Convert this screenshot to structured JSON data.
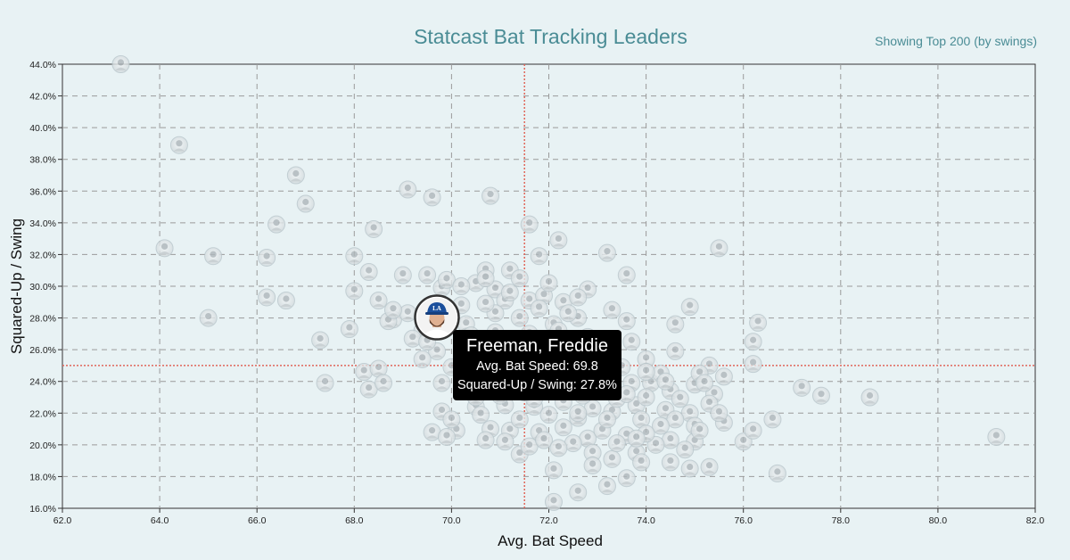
{
  "header": {
    "title": "Statcast Bat Tracking Leaders",
    "subtitle": "Showing Top 200 (by swings)"
  },
  "tooltip": {
    "name": "Freeman, Freddie",
    "bat_speed_text": "Avg. Bat Speed: 69.8",
    "squared_up_text": "Squared-Up / Swing: 27.8%"
  },
  "colors": {
    "background": "#e8f2f4",
    "accent": "#4a8c95",
    "reference_line": "#e0665a",
    "grid": "#9a9a9a",
    "marker_fill": "#dfe5e7",
    "highlight_ring": "#333333"
  },
  "chart_data": {
    "type": "scatter",
    "title": "Statcast Bat Tracking Leaders",
    "subtitle": "Showing Top 200 (by swings)",
    "xlabel": "Avg. Bat Speed",
    "ylabel": "Squared-Up / Swing",
    "xlim": [
      62,
      82
    ],
    "ylim": [
      16,
      44
    ],
    "x_ticks": [
      "62.0",
      "64.0",
      "66.0",
      "68.0",
      "70.0",
      "72.0",
      "74.0",
      "76.0",
      "78.0",
      "80.0",
      "82.0"
    ],
    "y_ticks": [
      "16.0%",
      "18.0%",
      "20.0%",
      "22.0%",
      "24.0%",
      "26.0%",
      "28.0%",
      "30.0%",
      "32.0%",
      "34.0%",
      "36.0%",
      "38.0%",
      "40.0%",
      "42.0%",
      "44.0%"
    ],
    "grid": true,
    "reference_lines": {
      "x": 71.5,
      "y": 25.0
    },
    "marker": "player headshot",
    "highlighted": {
      "name": "Freeman, Freddie",
      "x": 69.8,
      "y": 27.8
    },
    "points": [
      [
        63.2,
        44.0
      ],
      [
        64.4,
        38.9
      ],
      [
        66.8,
        37.0
      ],
      [
        67.0,
        35.2
      ],
      [
        69.1,
        36.1
      ],
      [
        69.6,
        35.6
      ],
      [
        70.8,
        35.7
      ],
      [
        66.4,
        33.9
      ],
      [
        64.1,
        32.4
      ],
      [
        65.1,
        31.9
      ],
      [
        66.2,
        31.8
      ],
      [
        68.0,
        31.9
      ],
      [
        68.4,
        33.6
      ],
      [
        71.6,
        33.9
      ],
      [
        71.8,
        31.9
      ],
      [
        72.2,
        32.9
      ],
      [
        73.2,
        32.1
      ],
      [
        75.5,
        32.4
      ],
      [
        68.3,
        30.9
      ],
      [
        69.0,
        30.7
      ],
      [
        69.5,
        30.7
      ],
      [
        70.7,
        31.0
      ],
      [
        71.2,
        31.0
      ],
      [
        73.6,
        30.7
      ],
      [
        68.0,
        29.7
      ],
      [
        68.5,
        29.1
      ],
      [
        66.2,
        29.3
      ],
      [
        66.6,
        29.1
      ],
      [
        69.8,
        29.9
      ],
      [
        70.5,
        30.2
      ],
      [
        70.9,
        29.8
      ],
      [
        71.1,
        29.1
      ],
      [
        71.6,
        29.1
      ],
      [
        72.3,
        29.0
      ],
      [
        72.8,
        29.8
      ],
      [
        74.9,
        28.7
      ],
      [
        65.0,
        28.0
      ],
      [
        67.9,
        27.3
      ],
      [
        67.3,
        26.6
      ],
      [
        68.8,
        27.9
      ],
      [
        69.4,
        27.2
      ],
      [
        70.3,
        27.6
      ],
      [
        70.9,
        28.3
      ],
      [
        71.4,
        28.0
      ],
      [
        72.1,
        27.6
      ],
      [
        72.6,
        28.0
      ],
      [
        73.6,
        27.8
      ],
      [
        74.6,
        27.6
      ],
      [
        76.3,
        27.7
      ],
      [
        69.2,
        26.7
      ],
      [
        69.7,
        25.9
      ],
      [
        71.0,
        26.3
      ],
      [
        72.0,
        26.5
      ],
      [
        72.9,
        25.6
      ],
      [
        74.0,
        25.4
      ],
      [
        74.6,
        25.9
      ],
      [
        76.2,
        26.5
      ],
      [
        76.2,
        25.1
      ],
      [
        75.3,
        25.0
      ],
      [
        68.2,
        24.6
      ],
      [
        68.5,
        24.8
      ],
      [
        67.4,
        23.9
      ],
      [
        68.3,
        23.5
      ],
      [
        68.6,
        23.9
      ],
      [
        69.8,
        23.9
      ],
      [
        70.3,
        23.5
      ],
      [
        70.9,
        24.2
      ],
      [
        71.5,
        23.9
      ],
      [
        72.4,
        23.9
      ],
      [
        73.1,
        24.1
      ],
      [
        73.7,
        23.9
      ],
      [
        74.1,
        23.9
      ],
      [
        74.5,
        23.4
      ],
      [
        75.0,
        23.8
      ],
      [
        75.4,
        23.2
      ],
      [
        77.2,
        23.6
      ],
      [
        77.6,
        23.1
      ],
      [
        78.6,
        23.0
      ],
      [
        69.8,
        22.1
      ],
      [
        70.5,
        22.4
      ],
      [
        71.1,
        22.5
      ],
      [
        71.7,
        22.4
      ],
      [
        72.3,
        22.7
      ],
      [
        72.9,
        22.3
      ],
      [
        73.3,
        22.1
      ],
      [
        73.8,
        22.5
      ],
      [
        74.4,
        22.2
      ],
      [
        74.9,
        22.0
      ],
      [
        75.3,
        22.6
      ],
      [
        75.6,
        21.4
      ],
      [
        76.6,
        21.6
      ],
      [
        69.6,
        20.8
      ],
      [
        70.1,
        20.9
      ],
      [
        70.8,
        21.0
      ],
      [
        71.2,
        20.9
      ],
      [
        71.8,
        20.8
      ],
      [
        72.3,
        21.1
      ],
      [
        72.8,
        20.4
      ],
      [
        73.1,
        20.9
      ],
      [
        73.6,
        20.6
      ],
      [
        74.5,
        20.3
      ],
      [
        75.0,
        20.2
      ],
      [
        76.0,
        20.2
      ],
      [
        76.2,
        20.9
      ],
      [
        71.4,
        19.4
      ],
      [
        71.6,
        19.9
      ],
      [
        72.9,
        19.5
      ],
      [
        73.3,
        19.1
      ],
      [
        73.8,
        19.5
      ],
      [
        74.5,
        18.9
      ],
      [
        74.9,
        18.5
      ],
      [
        75.3,
        18.6
      ],
      [
        72.1,
        18.4
      ],
      [
        72.6,
        17.0
      ],
      [
        73.2,
        17.4
      ],
      [
        73.6,
        17.9
      ],
      [
        76.7,
        18.2
      ],
      [
        72.1,
        16.4
      ],
      [
        81.2,
        20.5
      ],
      [
        70.0,
        24.9
      ],
      [
        70.6,
        25.3
      ],
      [
        71.3,
        25.6
      ],
      [
        72.5,
        24.8
      ],
      [
        73.5,
        24.9
      ],
      [
        74.3,
        24.5
      ],
      [
        75.1,
        24.5
      ],
      [
        70.2,
        28.8
      ],
      [
        70.7,
        28.9
      ],
      [
        71.2,
        29.6
      ],
      [
        71.9,
        29.4
      ],
      [
        72.6,
        29.3
      ],
      [
        73.3,
        28.5
      ],
      [
        70.4,
        26.9
      ],
      [
        70.9,
        27.1
      ],
      [
        71.6,
        27.0
      ],
      [
        72.2,
        27.2
      ],
      [
        72.8,
        26.8
      ],
      [
        73.7,
        26.5
      ],
      [
        70.5,
        23.0
      ],
      [
        71.0,
        23.1
      ],
      [
        71.7,
        22.9
      ],
      [
        72.1,
        23.4
      ],
      [
        72.7,
        23.1
      ],
      [
        73.4,
        22.9
      ],
      [
        74.0,
        23.0
      ],
      [
        74.7,
        22.9
      ],
      [
        75.2,
        23.9
      ],
      [
        70.0,
        21.6
      ],
      [
        70.6,
        21.9
      ],
      [
        71.4,
        21.6
      ],
      [
        72.0,
        21.9
      ],
      [
        72.6,
        21.7
      ],
      [
        73.2,
        21.6
      ],
      [
        73.9,
        21.6
      ],
      [
        74.6,
        21.6
      ],
      [
        75.0,
        21.2
      ],
      [
        71.1,
        20.2
      ],
      [
        71.9,
        20.3
      ],
      [
        72.5,
        20.1
      ],
      [
        73.4,
        20.1
      ],
      [
        74.2,
        20.0
      ],
      [
        74.8,
        19.7
      ],
      [
        72.9,
        18.7
      ],
      [
        73.9,
        18.9
      ],
      [
        68.7,
        27.8
      ],
      [
        69.1,
        28.3
      ],
      [
        68.8,
        28.5
      ],
      [
        69.5,
        26.5
      ],
      [
        71.4,
        30.5
      ],
      [
        70.7,
        30.5
      ],
      [
        72.0,
        30.2
      ],
      [
        69.9,
        30.4
      ],
      [
        70.2,
        30.0
      ],
      [
        71.8,
        28.6
      ],
      [
        72.4,
        28.3
      ],
      [
        74.4,
        24.0
      ],
      [
        75.6,
        24.3
      ],
      [
        73.0,
        24.4
      ],
      [
        74.0,
        24.6
      ],
      [
        69.4,
        25.4
      ],
      [
        70.7,
        24.6
      ],
      [
        71.2,
        24.2
      ],
      [
        72.9,
        23.5
      ],
      [
        73.6,
        23.2
      ],
      [
        74.3,
        21.2
      ],
      [
        75.5,
        22.0
      ],
      [
        69.9,
        20.5
      ],
      [
        70.7,
        20.3
      ],
      [
        74.0,
        20.7
      ],
      [
        75.1,
        20.9
      ],
      [
        72.2,
        19.8
      ],
      [
        73.8,
        20.4
      ],
      [
        72.6,
        22.0
      ],
      [
        71.5,
        23.3
      ],
      [
        70.8,
        23.6
      ]
    ]
  }
}
